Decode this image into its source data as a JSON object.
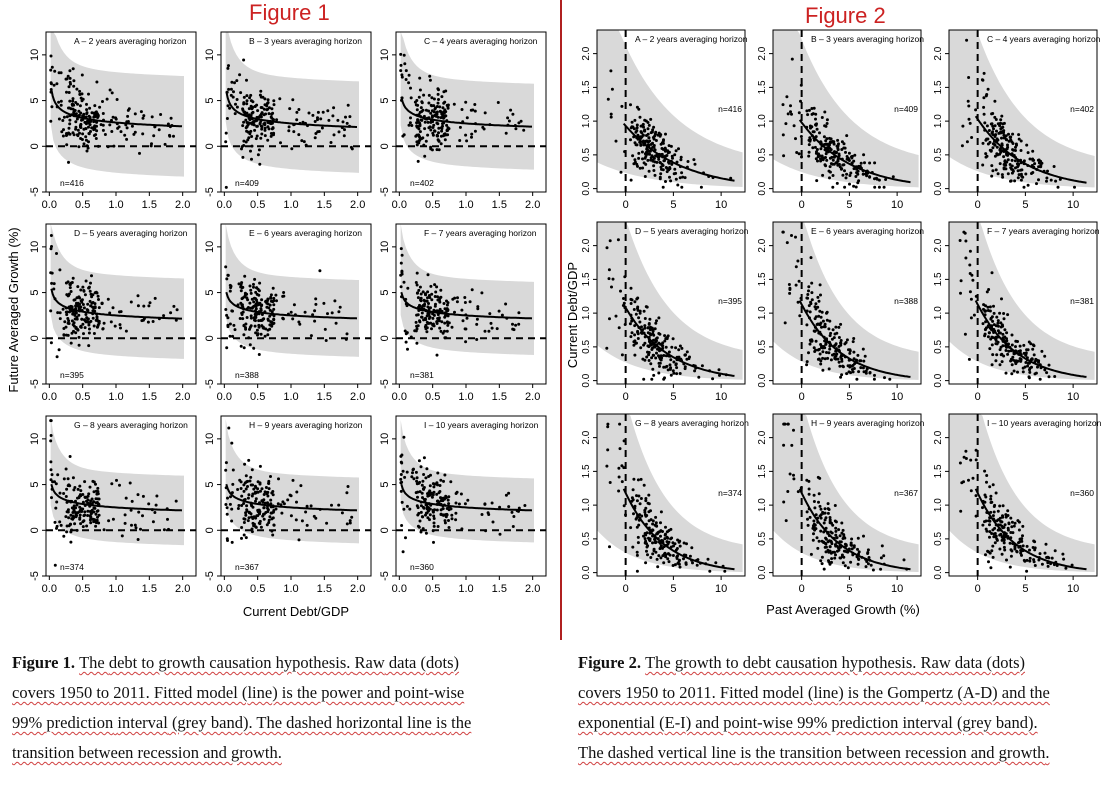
{
  "fig1_title": "Figure 1",
  "fig2_title": "Figure 2",
  "fig1": {
    "ylabel": "Future Averaged Growth (%)",
    "xlabel": "Current Debt/GDP",
    "xticks": [
      "0.0",
      "0.5",
      "1.0",
      "1.5",
      "2.0"
    ],
    "yticks": [
      "-5",
      "0",
      "5",
      "10"
    ]
  },
  "fig2": {
    "ylabel": "Current Debt/GDP",
    "xlabel": "Past Averaged Growth (%)",
    "xticks": [
      "0",
      "5",
      "10"
    ],
    "yticks": [
      "0.0",
      "0.5",
      "1.0",
      "1.5",
      "2.0"
    ]
  },
  "chart_data": [
    {
      "type": "scatter",
      "title": "Figure 1",
      "xlabel": "Current Debt/GDP",
      "ylabel": "Future Averaged Growth (%)",
      "xlim": [
        -0.05,
        2.2
      ],
      "ylim": [
        -5,
        12.5
      ],
      "reference_line": {
        "orientation": "horizontal",
        "y": 0,
        "style": "dashed"
      },
      "panels": [
        {
          "label": "A – 2 years averaging horizon",
          "n": "n=416",
          "fit": {
            "model": "power",
            "a": 2.6,
            "b": -0.25
          },
          "band": {
            "upper_offset": 5.5,
            "lower_offset": 5.5
          }
        },
        {
          "label": "B – 3 years averaging horizon",
          "n": "n=409",
          "fit": {
            "model": "power",
            "a": 2.5,
            "b": -0.25
          },
          "band": {
            "upper_offset": 5.0,
            "lower_offset": 5.0
          }
        },
        {
          "label": "C – 4 years averaging horizon",
          "n": "n=402",
          "fit": {
            "model": "power",
            "a": 2.5,
            "b": -0.22
          },
          "band": {
            "upper_offset": 4.7,
            "lower_offset": 4.7
          }
        },
        {
          "label": "D – 5 years averaging horizon",
          "n": "n=395",
          "fit": {
            "model": "power",
            "a": 2.5,
            "b": -0.22
          },
          "band": {
            "upper_offset": 4.4,
            "lower_offset": 4.4
          }
        },
        {
          "label": "E – 6 years averaging horizon",
          "n": "n=388",
          "fit": {
            "model": "power",
            "a": 2.5,
            "b": -0.2
          },
          "band": {
            "upper_offset": 4.2,
            "lower_offset": 4.2
          }
        },
        {
          "label": "F – 7 years averaging horizon",
          "n": "n=381",
          "fit": {
            "model": "power",
            "a": 2.5,
            "b": -0.2
          },
          "band": {
            "upper_offset": 4.0,
            "lower_offset": 4.0
          }
        },
        {
          "label": "G – 8 years averaging horizon",
          "n": "n=374",
          "fit": {
            "model": "power",
            "a": 2.5,
            "b": -0.2
          },
          "band": {
            "upper_offset": 3.8,
            "lower_offset": 3.8
          }
        },
        {
          "label": "H – 9 years averaging horizon",
          "n": "n=367",
          "fit": {
            "model": "power",
            "a": 2.5,
            "b": -0.2
          },
          "band": {
            "upper_offset": 3.6,
            "lower_offset": 3.6
          }
        },
        {
          "label": "I – 10 years averaging horizon",
          "n": "n=360",
          "fit": {
            "model": "power",
            "a": 2.5,
            "b": -0.2
          },
          "band": {
            "upper_offset": 3.5,
            "lower_offset": 3.5
          }
        }
      ]
    },
    {
      "type": "scatter",
      "title": "Figure 2",
      "xlabel": "Past Averaged Growth (%)",
      "ylabel": "Current Debt/GDP",
      "xlim": [
        -3,
        12.5
      ],
      "ylim": [
        -0.05,
        2.35
      ],
      "reference_line": {
        "orientation": "vertical",
        "x": 0,
        "style": "dashed"
      },
      "panels": [
        {
          "label": "A – 2 years averaging horizon",
          "n": "n=416",
          "fit": {
            "model": "gompertz",
            "y0": 0.95,
            "k": 0.17
          }
        },
        {
          "label": "B – 3 years averaging horizon",
          "n": "n=409",
          "fit": {
            "model": "gompertz",
            "y0": 1.0,
            "k": 0.19
          }
        },
        {
          "label": "C – 4 years averaging horizon",
          "n": "n=402",
          "fit": {
            "model": "gompertz",
            "y0": 1.05,
            "k": 0.2
          }
        },
        {
          "label": "D – 5 years averaging horizon",
          "n": "n=395",
          "fit": {
            "model": "gompertz",
            "y0": 1.1,
            "k": 0.22
          }
        },
        {
          "label": "E – 6 years averaging horizon",
          "n": "n=388",
          "fit": {
            "model": "exponential",
            "y0": 1.15,
            "k": 0.24
          }
        },
        {
          "label": "F – 7 years averaging horizon",
          "n": "n=381",
          "fit": {
            "model": "exponential",
            "y0": 1.15,
            "k": 0.24
          }
        },
        {
          "label": "G – 8 years averaging horizon",
          "n": "n=374",
          "fit": {
            "model": "exponential",
            "y0": 1.2,
            "k": 0.25
          }
        },
        {
          "label": "H – 9 years averaging horizon",
          "n": "n=367",
          "fit": {
            "model": "exponential",
            "y0": 1.2,
            "k": 0.25
          }
        },
        {
          "label": "I – 10 years averaging horizon",
          "n": "n=360",
          "fit": {
            "model": "exponential",
            "y0": 1.2,
            "k": 0.25
          }
        }
      ]
    }
  ],
  "caption1": {
    "lead": "Figure 1.",
    "lines": [
      [
        "The ",
        "debt",
        " to ",
        "growth causation hypothesis",
        ". ",
        "Raw",
        " data (",
        "dots",
        ")"
      ],
      [
        "covers",
        " 1950 ",
        "to",
        " 2011. Fitted model (",
        "line",
        ") is the power and ",
        "point-wise"
      ],
      [
        "99% ",
        "prediction",
        " ",
        "interval",
        " (grey band). The dashed horizontal ",
        "line",
        " is ",
        "the"
      ],
      [
        "transition between recession and growth",
        "."
      ]
    ]
  },
  "caption2": {
    "lead": "Figure 2.",
    "lines": [
      [
        "The ",
        "growth",
        " to ",
        "debt causation hypothesis",
        ". ",
        "Raw",
        " data (",
        "dots",
        ")"
      ],
      [
        "covers",
        " 1950 ",
        "to",
        " 2011. Fitted model (",
        "line",
        ") is the Gompertz  (",
        "A-D",
        ") and the"
      ],
      [
        "exponential",
        " (",
        "E-I",
        ") and ",
        "point-wise",
        " 99% prediction interval (grey band)."
      ],
      [
        "The dashed vertical ",
        "line",
        " is ",
        "the transition between recession and growth",
        "."
      ]
    ]
  }
}
